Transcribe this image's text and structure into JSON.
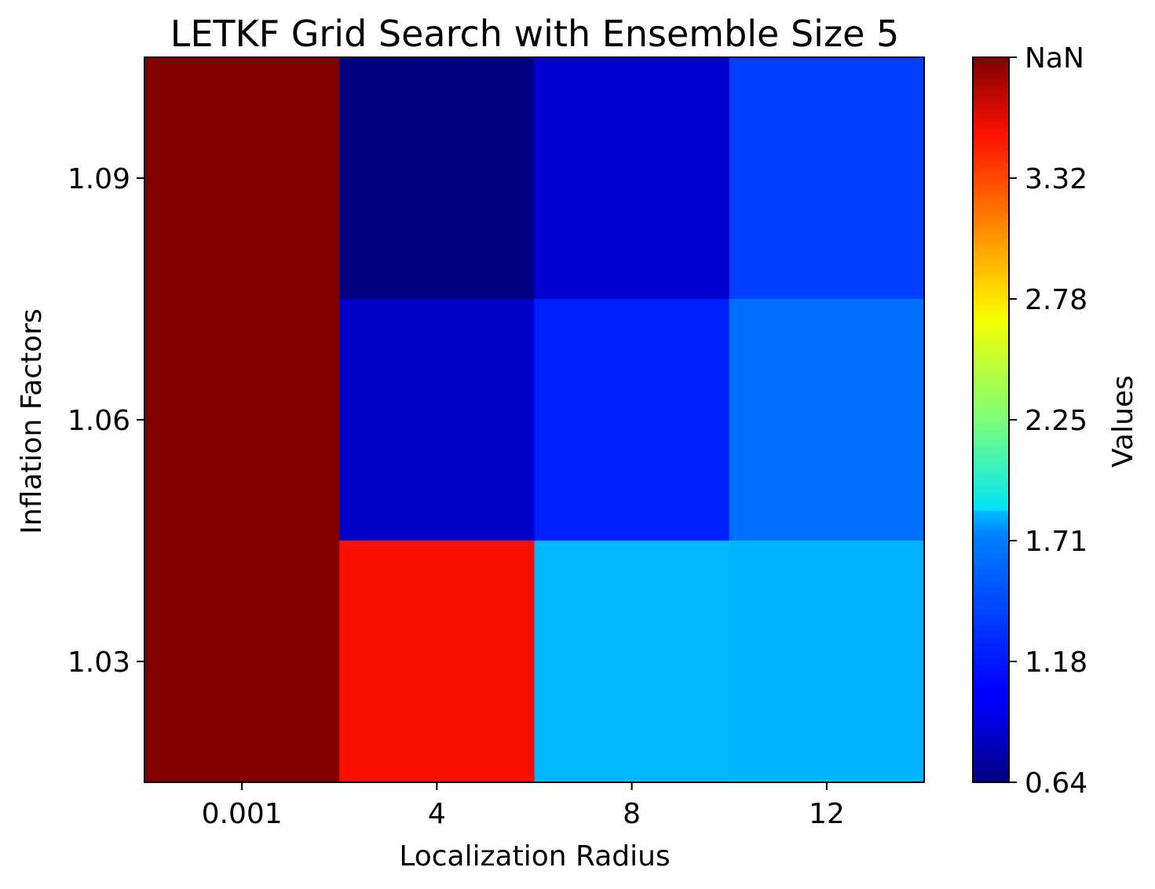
{
  "chart_data": {
    "type": "heatmap",
    "title": "LETKF Grid Search with Ensemble Size 5",
    "xlabel": "Localization Radius",
    "ylabel": "Inflation Factors",
    "colorbar_label": "Values",
    "colormap": "jet",
    "x_categories": [
      "0.001",
      "4",
      "8",
      "12"
    ],
    "y_categories": [
      "1.03",
      "1.06",
      "1.09"
    ],
    "rows": [
      {
        "y": "1.09",
        "values": [
          "NaN",
          0.64,
          0.86,
          1.24
        ]
      },
      {
        "y": "1.06",
        "values": [
          "NaN",
          0.84,
          1.14,
          1.4
        ]
      },
      {
        "y": "1.03",
        "values": [
          "NaN",
          3.52,
          1.62,
          1.61
        ]
      }
    ],
    "vmin": 0.64,
    "vmax": 3.86,
    "colorbar_ticks": [
      "0.64",
      "1.18",
      "1.71",
      "2.25",
      "2.78",
      "3.32",
      "NaN"
    ],
    "nan_color": "#800000",
    "grid": false
  }
}
